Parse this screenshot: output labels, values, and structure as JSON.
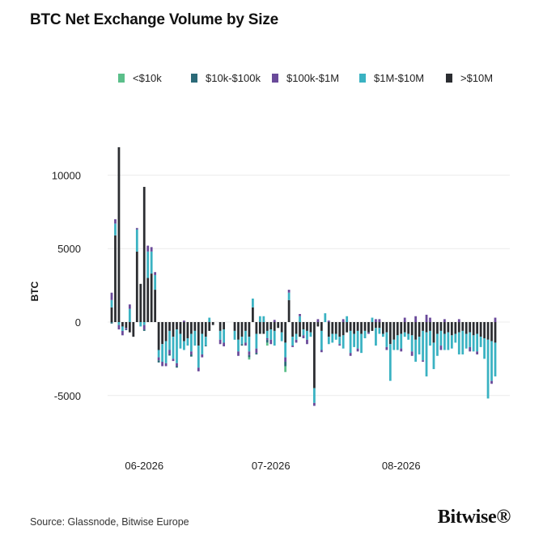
{
  "header": {
    "title": "BTC Net Exchange Volume by Size"
  },
  "footer": {
    "source": "Source: Glassnode, Bitwise Europe",
    "brand": "Bitwise"
  },
  "colors": {
    "lt10k": "#5bbf8a",
    "10k_100k": "#2b6a78",
    "100k_1m": "#6a4a9a",
    "1m_10m": "#3ab2c2",
    "gt10m": "#2b2d31"
  },
  "chart_data": {
    "type": "bar",
    "stacked": true,
    "title": "BTC Net Exchange Volume by Size",
    "xlabel": "",
    "ylabel": "BTC",
    "ylim": [
      -8500,
      13000
    ],
    "yticks": [
      10000,
      5000,
      0,
      -5000
    ],
    "ytick_labels": [
      "10000",
      "5000",
      "0",
      "-5000"
    ],
    "xticks": [
      {
        "label": "06-2026",
        "index": 9
      },
      {
        "label": "07-2026",
        "index": 44
      },
      {
        "label": "08-2026",
        "index": 80
      }
    ],
    "grid": true,
    "legend_position": "top",
    "categories": [
      "2026-05-23",
      "2026-05-24",
      "2026-05-25",
      "2026-05-26",
      "2026-05-27",
      "2026-05-28",
      "2026-05-29",
      "2026-05-30",
      "2026-05-31",
      "2026-06-01",
      "2026-06-02",
      "2026-06-03",
      "2026-06-04",
      "2026-06-05",
      "2026-06-06",
      "2026-06-07",
      "2026-06-08",
      "2026-06-09",
      "2026-06-10",
      "2026-06-11",
      "2026-06-12",
      "2026-06-13",
      "2026-06-14",
      "2026-06-15",
      "2026-06-16",
      "2026-06-17",
      "2026-06-18",
      "2026-06-19",
      "2026-06-20",
      "2026-06-21",
      "2026-06-22",
      "2026-06-23",
      "2026-06-24",
      "2026-06-25",
      "2026-06-26",
      "2026-06-27",
      "2026-06-28",
      "2026-06-29",
      "2026-06-30",
      "2026-07-01",
      "2026-07-02",
      "2026-07-03",
      "2026-07-04",
      "2026-07-05",
      "2026-07-06",
      "2026-07-07",
      "2026-07-08",
      "2026-07-09",
      "2026-07-10",
      "2026-07-11",
      "2026-07-12",
      "2026-07-13",
      "2026-07-14",
      "2026-07-15",
      "2026-07-16",
      "2026-07-17",
      "2026-07-18",
      "2026-07-19",
      "2026-07-20",
      "2026-07-21",
      "2026-07-22",
      "2026-07-23",
      "2026-07-24",
      "2026-07-25",
      "2026-07-26",
      "2026-07-27",
      "2026-07-28",
      "2026-07-29",
      "2026-07-30",
      "2026-07-31",
      "2026-08-01",
      "2026-08-02",
      "2026-08-03",
      "2026-08-04",
      "2026-08-05",
      "2026-08-06",
      "2026-08-07",
      "2026-08-08",
      "2026-08-09",
      "2026-08-10",
      "2026-08-11",
      "2026-08-12",
      "2026-08-13",
      "2026-08-14",
      "2026-08-15",
      "2026-08-16",
      "2026-08-17",
      "2026-08-18",
      "2026-08-19",
      "2026-08-20",
      "2026-08-21",
      "2026-08-22",
      "2026-08-23",
      "2026-08-24",
      "2026-08-25",
      "2026-08-26",
      "2026-08-27",
      "2026-08-28",
      "2026-08-29",
      "2026-08-30",
      "2026-08-31",
      "2026-09-01",
      "2026-09-02",
      "2026-09-03",
      "2026-09-04",
      "2026-09-05",
      "2026-09-06"
    ],
    "series": [
      {
        "name": "<$10k",
        "color": "#5bbf8a",
        "values": [
          0,
          0,
          0,
          0,
          0,
          0,
          0,
          0,
          0,
          0,
          0,
          0,
          0,
          0,
          0,
          0,
          0,
          0,
          0,
          0,
          0,
          0,
          0,
          0,
          0,
          0,
          0,
          0,
          0,
          0,
          0,
          0,
          0,
          0,
          0,
          0,
          0,
          0,
          -150,
          0,
          0,
          0,
          0,
          -200,
          0,
          0,
          0,
          0,
          -400,
          0,
          0,
          0,
          0,
          0,
          0,
          0,
          0,
          0,
          0,
          0,
          0,
          0,
          0,
          0,
          0,
          0,
          0,
          0,
          0,
          0,
          0,
          0,
          0,
          0,
          0,
          0,
          0,
          0,
          0,
          0,
          0,
          0,
          0,
          0,
          0,
          0,
          0,
          0,
          0,
          0,
          0,
          0,
          0,
          0,
          0,
          0,
          0,
          0,
          0,
          0,
          0,
          0,
          0,
          0,
          0,
          0,
          0
        ]
      },
      {
        "name": "$10k-$100k",
        "color": "#2b6a78",
        "values": [
          -100,
          0,
          0,
          0,
          -50,
          0,
          0,
          0,
          0,
          -100,
          0,
          0,
          0,
          -150,
          0,
          0,
          -80,
          0,
          -100,
          0,
          0,
          0,
          -150,
          0,
          0,
          0,
          -50,
          0,
          0,
          0,
          0,
          0,
          0,
          0,
          0,
          0,
          -100,
          0,
          -150,
          0,
          -100,
          0,
          0,
          -200,
          0,
          0,
          0,
          0,
          -300,
          0,
          0,
          0,
          0,
          0,
          0,
          0,
          0,
          0,
          0,
          0,
          0,
          0,
          0,
          0,
          0,
          0,
          0,
          0,
          0,
          0,
          0,
          0,
          0,
          0,
          0,
          0,
          0,
          0,
          0,
          0,
          0,
          0,
          0,
          0,
          0,
          0,
          0,
          0,
          0,
          0,
          0,
          0,
          0,
          0,
          0,
          0,
          0,
          0,
          0,
          0,
          0,
          0,
          0,
          0,
          0,
          0,
          0
        ]
      },
      {
        "name": "$100k-$1M",
        "color": "#6a4a9a",
        "values": [
          500,
          300,
          -300,
          -300,
          -100,
          300,
          0,
          100,
          0,
          -300,
          400,
          300,
          200,
          -200,
          -300,
          -200,
          -300,
          -150,
          -200,
          0,
          100,
          0,
          -200,
          0,
          -250,
          -200,
          0,
          0,
          0,
          0,
          -300,
          -250,
          0,
          0,
          0,
          -300,
          0,
          -200,
          -250,
          0,
          -300,
          0,
          0,
          -100,
          -300,
          150,
          0,
          0,
          -300,
          200,
          -100,
          -200,
          150,
          -200,
          -300,
          0,
          -200,
          200,
          -150,
          0,
          100,
          0,
          0,
          -100,
          200,
          0,
          -200,
          0,
          -200,
          0,
          0,
          -100,
          0,
          200,
          200,
          0,
          -200,
          0,
          0,
          0,
          -200,
          300,
          0,
          -300,
          400,
          0,
          -100,
          500,
          300,
          0,
          0,
          -300,
          200,
          0,
          0,
          0,
          200,
          0,
          0,
          -300,
          0,
          -200,
          0,
          0,
          0,
          -200,
          300
        ]
      },
      {
        "name": "$1M-$10M",
        "color": "#3ab2c2",
        "values": [
          500,
          800,
          -200,
          -300,
          0,
          900,
          0,
          1500,
          -300,
          -200,
          1800,
          1500,
          1000,
          -500,
          -1200,
          -1500,
          -1300,
          -1500,
          -2300,
          -1000,
          -600,
          -500,
          -1200,
          -1000,
          -1500,
          -1400,
          -600,
          300,
          0,
          0,
          -600,
          -900,
          0,
          0,
          -600,
          -800,
          -500,
          -800,
          -1000,
          600,
          -1000,
          400,
          400,
          -500,
          -700,
          -1000,
          0,
          -600,
          -1000,
          500,
          -600,
          -400,
          400,
          -400,
          -600,
          -300,
          -1000,
          0,
          -1300,
          600,
          -500,
          -600,
          -400,
          -500,
          -900,
          400,
          -1500,
          -900,
          -1200,
          -1300,
          -500,
          0,
          300,
          -1200,
          -400,
          -200,
          -1000,
          -2500,
          -700,
          -1000,
          -1000,
          -300,
          -400,
          -1100,
          -1500,
          -1200,
          -2000,
          -3000,
          -1000,
          -1800,
          -1500,
          -1000,
          -1100,
          -1200,
          -900,
          -600,
          -1500,
          -1600,
          -1000,
          -1000,
          -1100,
          -1200,
          -700,
          -1400,
          -4000,
          -2700,
          -2300
        ]
      },
      {
        "name": ">$10M",
        "color": "#2b2d31",
        "values": [
          1000,
          5900,
          11900,
          -300,
          -400,
          -700,
          -1000,
          4800,
          2600,
          9200,
          3000,
          3300,
          2200,
          -1900,
          -1500,
          -1300,
          -600,
          -1000,
          -500,
          -800,
          -1300,
          -1100,
          -800,
          -600,
          -1600,
          -800,
          -1000,
          -600,
          -200,
          0,
          -600,
          -500,
          0,
          0,
          -600,
          -1200,
          -1000,
          -600,
          -1000,
          1000,
          -800,
          -800,
          -800,
          -600,
          -500,
          -600,
          -400,
          -700,
          -1400,
          1500,
          -1000,
          -800,
          -1000,
          -500,
          -600,
          -700,
          -4500,
          -300,
          -600,
          0,
          -1000,
          -800,
          -800,
          -1000,
          -900,
          -700,
          -600,
          -800,
          -600,
          -800,
          -600,
          -700,
          -600,
          -400,
          -400,
          -800,
          -700,
          -1500,
          -1200,
          -900,
          -800,
          -700,
          -800,
          -900,
          -1200,
          -1000,
          -600,
          -700,
          -600,
          -1400,
          -800,
          -600,
          -800,
          -700,
          -900,
          -800,
          -700,
          -600,
          -800,
          -700,
          -900,
          -800,
          -1000,
          -1100,
          -1200,
          -1300,
          -1400
        ]
      }
    ]
  }
}
